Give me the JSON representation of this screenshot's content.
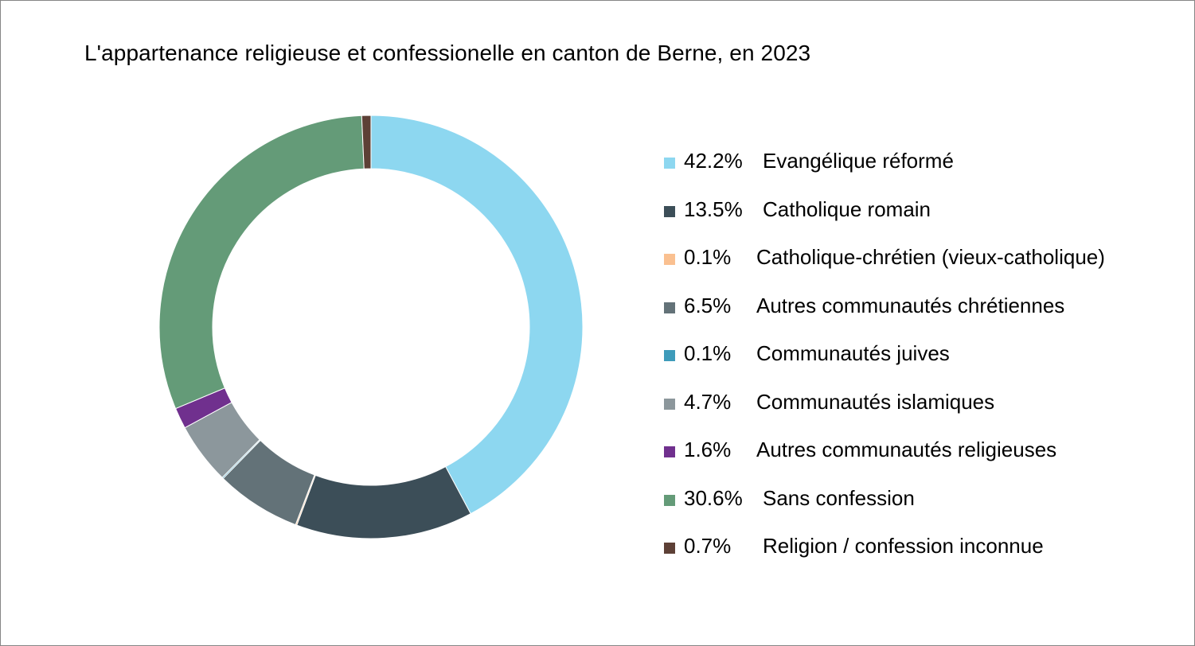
{
  "chart_data": {
    "type": "pie",
    "style": "donut",
    "title": "L'appartenance religieuse et confessionelle en canton de Berne, en 2023",
    "legend_position": "right",
    "unit": "%",
    "slices": [
      {
        "label": "Evangélique réformé",
        "value": 42.2,
        "display": "42.2%",
        "color": "#8DD7F0"
      },
      {
        "label": "Catholique romain",
        "value": 13.5,
        "display": "13.5%",
        "color": "#3C4E58"
      },
      {
        "label": "Catholique-chrétien (vieux-catholique)",
        "value": 0.1,
        "display": "0.1%",
        "color": "#FAC090"
      },
      {
        "label": "Autres communautés chrétiennes",
        "value": 6.5,
        "display": "6.5%",
        "color": "#637278"
      },
      {
        "label": "Communautés juives",
        "value": 0.1,
        "display": "0.1%",
        "color": "#3E9BBA"
      },
      {
        "label": "Communautés islamiques",
        "value": 4.7,
        "display": "4.7%",
        "color": "#8C979C"
      },
      {
        "label": "Autres communautés religieuses",
        "value": 1.6,
        "display": "1.6%",
        "color": "#70308E"
      },
      {
        "label": "Sans confession",
        "value": 30.6,
        "display": "30.6%",
        "color": "#649B78"
      },
      {
        "label": "Religion / confession inconnue",
        "value": 0.7,
        "display": "0.7%",
        "color": "#5D4036"
      }
    ]
  }
}
